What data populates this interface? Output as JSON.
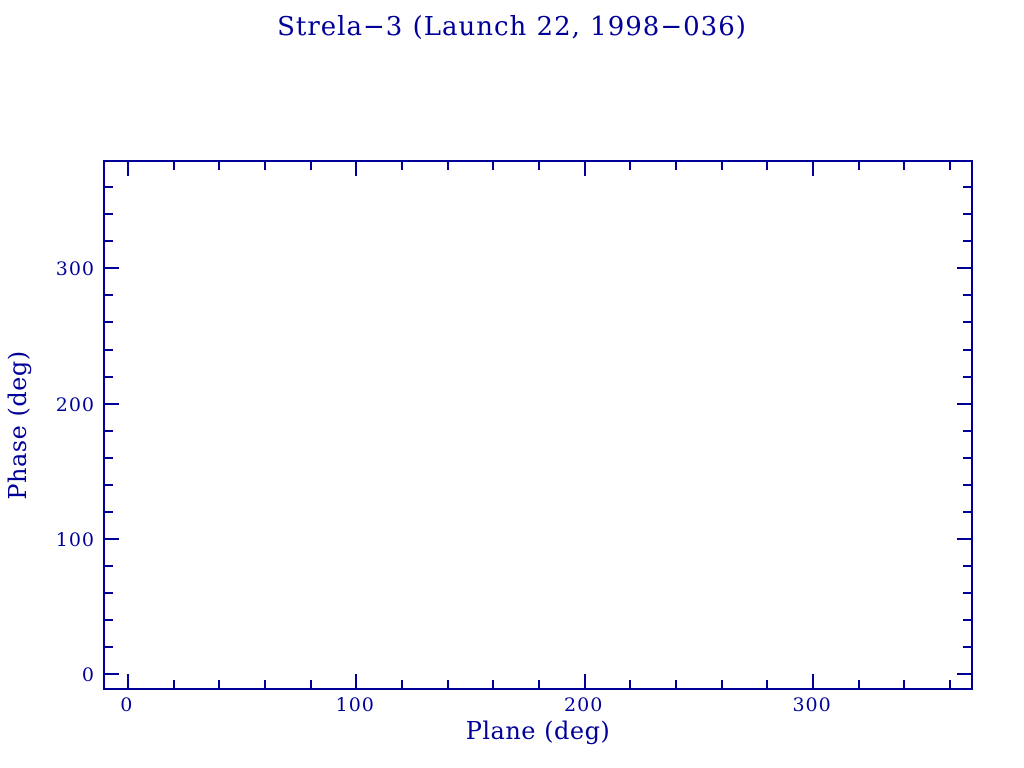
{
  "chart_data": {
    "type": "scatter",
    "title": "Strela−3 (Launch 22, 1998−036)",
    "xlabel": "Plane (deg)",
    "ylabel": "Phase (deg)",
    "xlim": [
      -10,
      370
    ],
    "ylim": [
      -10,
      380
    ],
    "x_major_ticks": [
      0,
      100,
      200,
      300
    ],
    "x_major_tick_labels": [
      "0",
      "100",
      "200",
      "300"
    ],
    "x_minor_ticks": [
      20,
      40,
      60,
      80,
      120,
      140,
      160,
      180,
      220,
      240,
      260,
      280,
      320,
      340,
      360
    ],
    "y_major_ticks": [
      0,
      100,
      200,
      300
    ],
    "y_major_tick_labels": [
      "0",
      "100",
      "200",
      "300"
    ],
    "y_minor_ticks": [
      20,
      40,
      60,
      80,
      120,
      140,
      160,
      180,
      220,
      240,
      260,
      280,
      320,
      340,
      360
    ],
    "points": [],
    "grid": false,
    "legend": null,
    "tick_style": "inward-all-sides",
    "frame_color": "#000099",
    "text_color": "#000099",
    "background_color": "#ffffff"
  }
}
